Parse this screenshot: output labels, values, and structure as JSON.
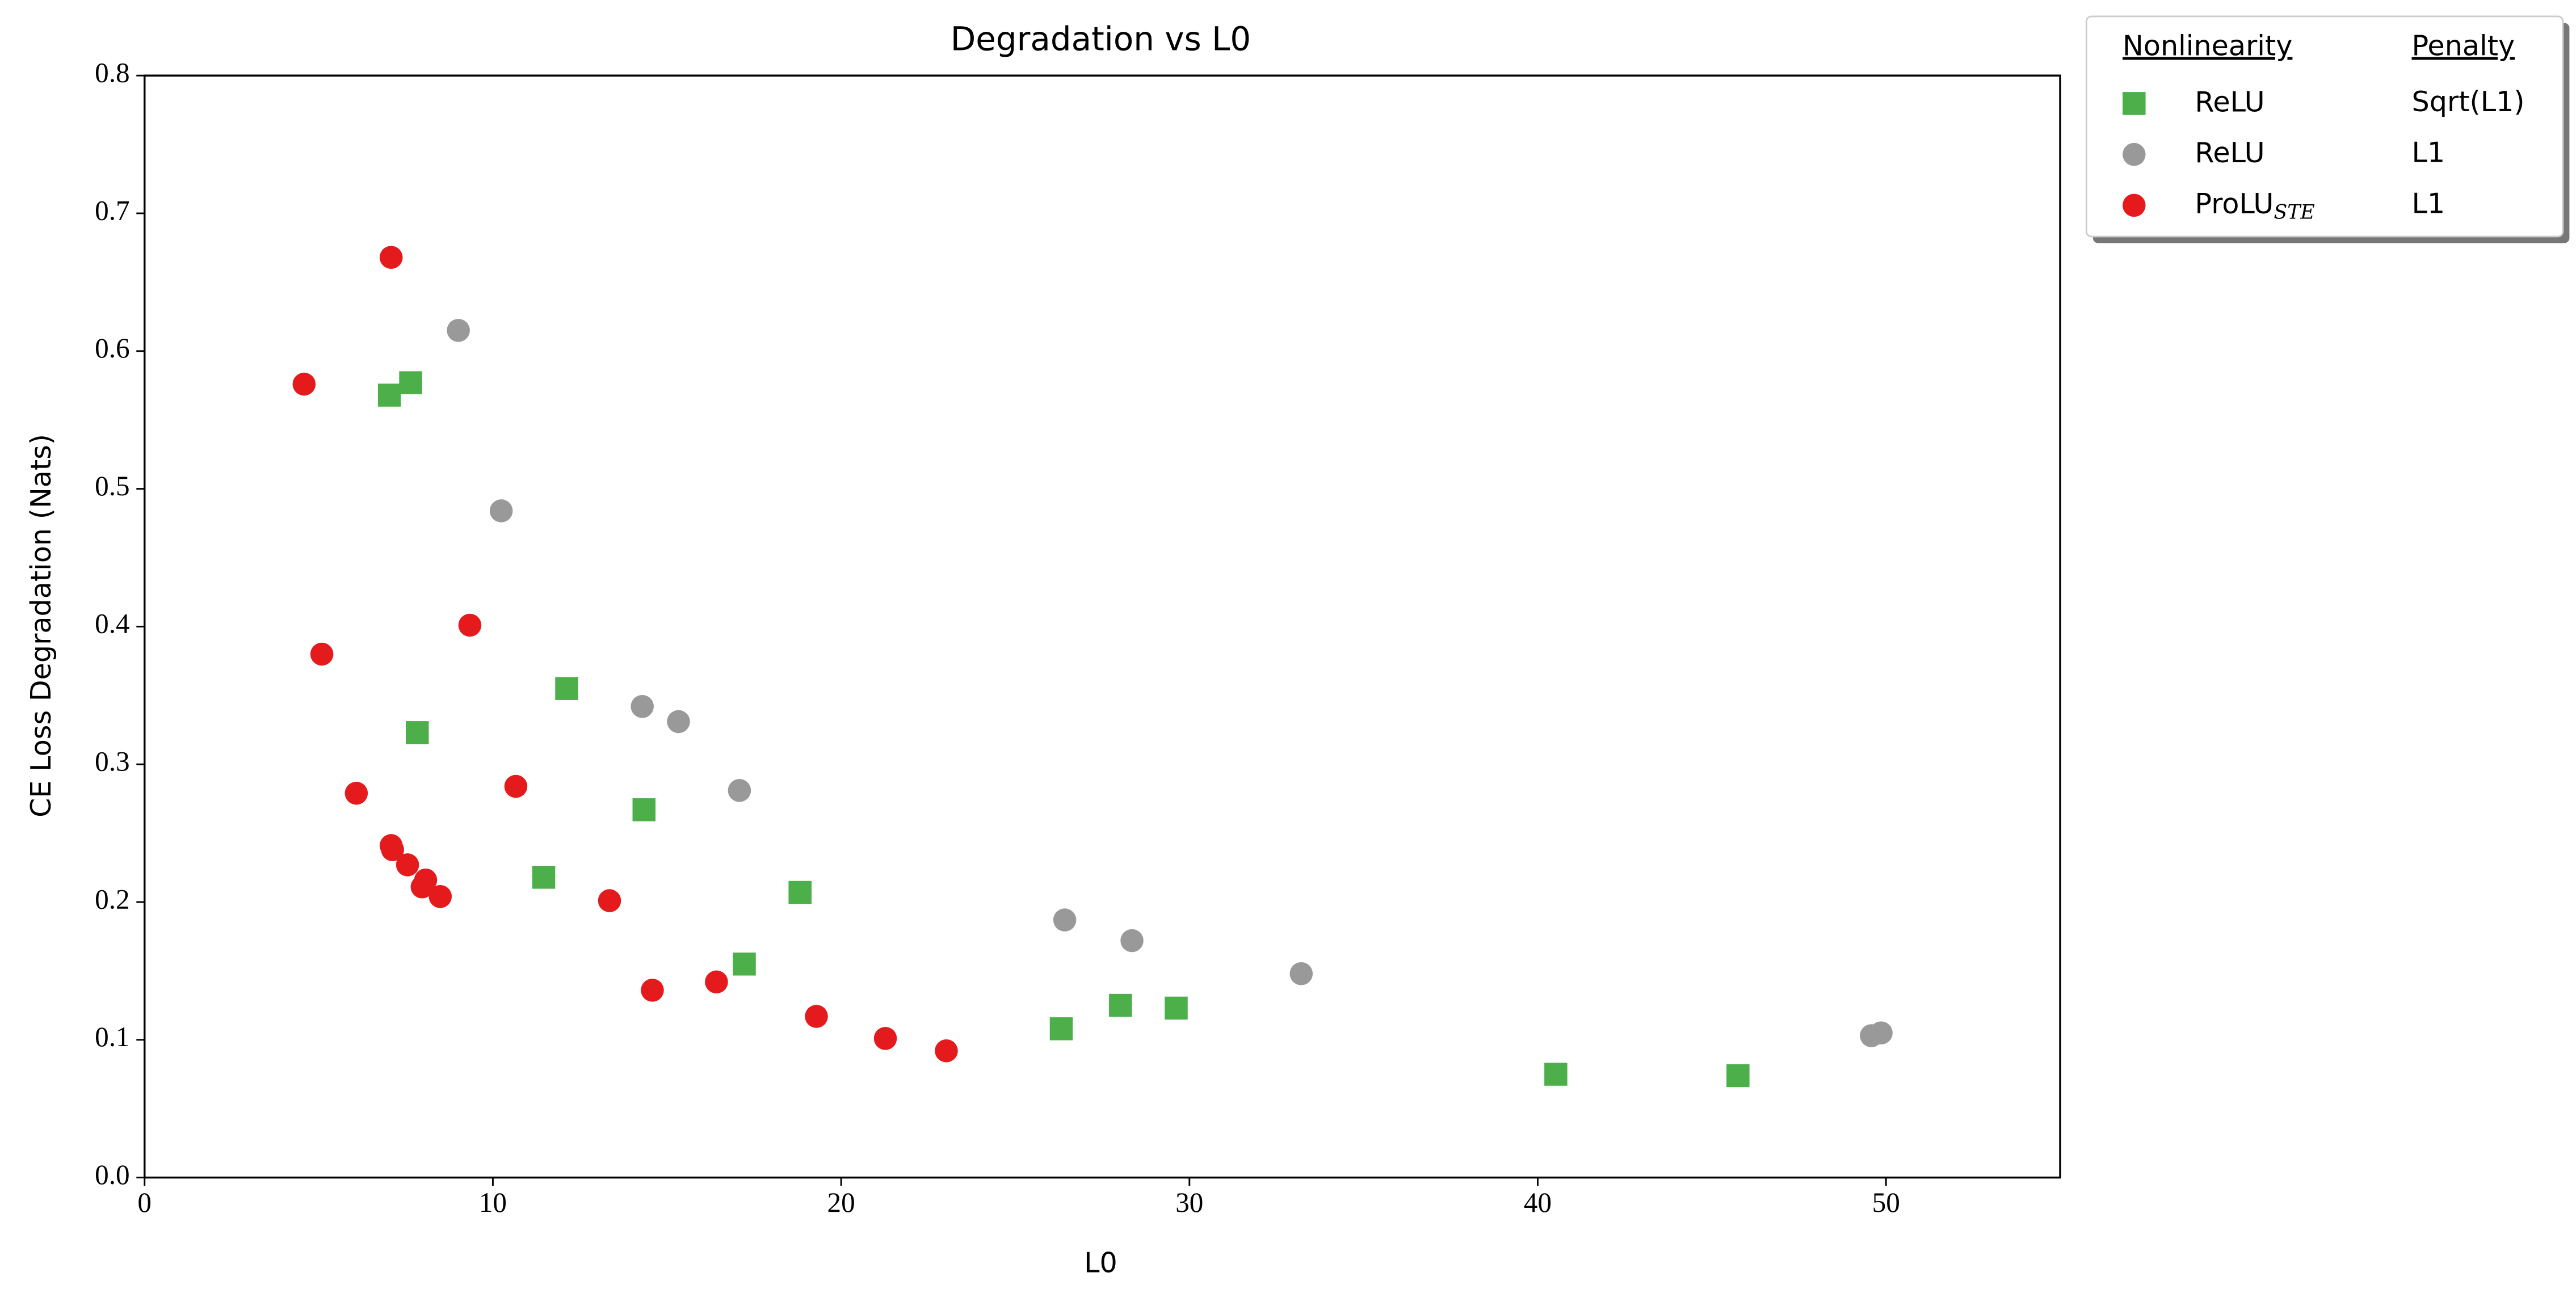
{
  "chart_data": {
    "type": "scatter",
    "title": "Degradation vs L0",
    "x_label": "L0",
    "y_label": "CE Loss Degradation (Nats)",
    "xlim": [
      0,
      55
    ],
    "ylim": [
      0,
      0.8
    ],
    "xticks": [
      0,
      10,
      20,
      30,
      40,
      50
    ],
    "yticks": [
      {
        "value": 0,
        "label": "0.0"
      },
      0.1,
      0.2,
      0.3,
      0.4,
      0.5,
      0.6,
      0.7,
      0.8
    ],
    "legend_headers": [
      "Nonlinearity",
      "Penalty"
    ],
    "legend_position": "outside upper right",
    "series": [
      {
        "nonlinearity": "ReLU",
        "penalty": "Sqrt(L1)",
        "marker": "square",
        "color": "#4daf4a",
        "x": [
          7.03,
          7.64,
          7.83,
          12.12,
          14.34,
          11.46,
          18.82,
          17.22,
          26.32,
          28.02,
          29.62,
          40.52,
          45.75
        ],
        "values": [
          0.568,
          0.577,
          0.323,
          0.355,
          0.267,
          0.218,
          0.207,
          0.155,
          0.108,
          0.125,
          0.123,
          0.075,
          0.074
        ]
      },
      {
        "nonlinearity": "ReLU",
        "penalty": "L1",
        "marker": "circle",
        "color": "#999999",
        "x": [
          9.01,
          10.24,
          14.29,
          15.33,
          17.08,
          26.42,
          28.35,
          33.21,
          49.58,
          49.86
        ],
        "values": [
          0.615,
          0.484,
          0.342,
          0.331,
          0.281,
          0.187,
          0.172,
          0.148,
          0.103,
          0.105
        ]
      },
      {
        "nonlinearity": "ProLU",
        "subscript": "STE",
        "penalty": "L1",
        "marker": "circle",
        "color": "#e41a1c",
        "x": [
          7.08,
          4.58,
          5.09,
          9.34,
          6.08,
          10.66,
          7.08,
          7.12,
          7.55,
          8.07,
          7.97,
          8.49,
          13.35,
          14.58,
          16.42,
          19.29,
          21.27,
          23.02
        ],
        "values": [
          0.668,
          0.576,
          0.38,
          0.401,
          0.279,
          0.284,
          0.241,
          0.238,
          0.227,
          0.216,
          0.211,
          0.204,
          0.201,
          0.136,
          0.142,
          0.117,
          0.101,
          0.092
        ]
      }
    ]
  }
}
